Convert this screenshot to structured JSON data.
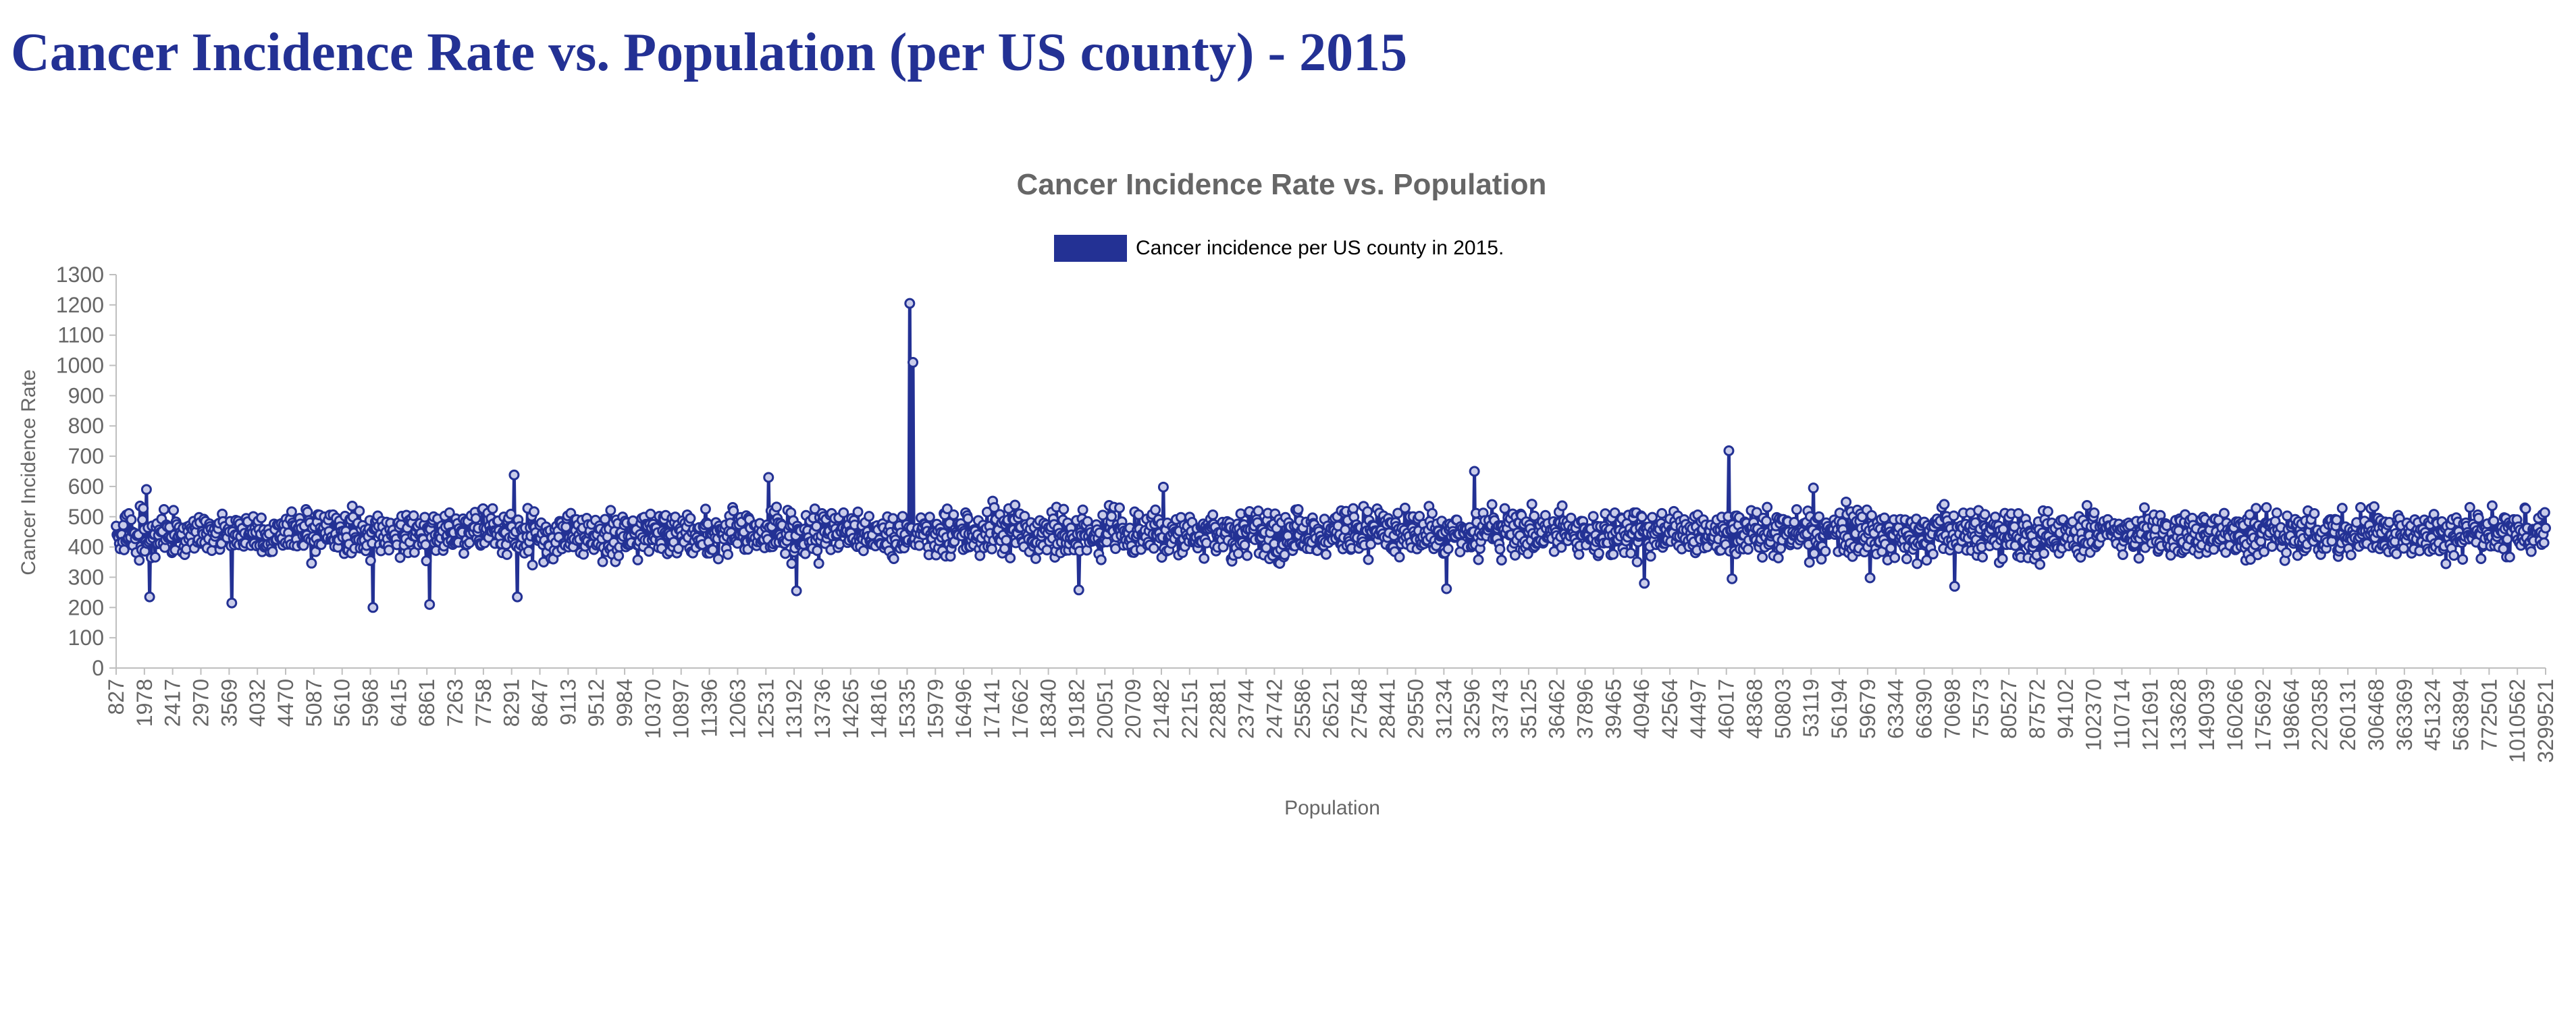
{
  "page": {
    "heading": "Cancer Incidence Rate vs. Population (per US county) - 2015"
  },
  "colors": {
    "heading": "#233194",
    "series": "#233194",
    "marker_fill": "#c9ccea",
    "text": "#666666",
    "legend_text": "#000000",
    "axis": "#bfbfbf"
  },
  "chart_data": {
    "type": "line",
    "title": "Cancer Incidence Rate vs. Population",
    "xlabel": "Population",
    "ylabel": "Cancer Incidence Rate",
    "ylim": [
      0,
      1300
    ],
    "yticks": [
      0,
      100,
      200,
      300,
      400,
      500,
      600,
      700,
      800,
      900,
      1000,
      1100,
      1200,
      1300
    ],
    "grid": false,
    "legend_position": "top",
    "x_axis_type": "category",
    "x_point_count": 3047,
    "x_tick_labels": [
      "827",
      "1978",
      "2417",
      "2970",
      "3569",
      "4032",
      "4470",
      "5087",
      "5610",
      "5968",
      "6415",
      "6861",
      "7263",
      "7758",
      "8291",
      "8647",
      "9113",
      "9512",
      "9984",
      "10370",
      "10897",
      "11396",
      "12063",
      "12531",
      "13192",
      "13736",
      "14265",
      "14816",
      "15335",
      "15979",
      "16496",
      "17141",
      "17662",
      "18340",
      "19182",
      "20051",
      "20709",
      "21482",
      "22151",
      "22881",
      "23744",
      "24742",
      "25586",
      "26521",
      "27548",
      "28441",
      "29550",
      "31234",
      "32596",
      "33743",
      "35125",
      "36462",
      "37896",
      "39465",
      "40946",
      "42564",
      "44497",
      "46017",
      "48368",
      "50803",
      "53119",
      "56194",
      "59679",
      "63344",
      "66390",
      "70698",
      "75573",
      "80527",
      "87572",
      "94102",
      "102370",
      "110714",
      "121691",
      "133628",
      "149039",
      "160266",
      "175692",
      "198664",
      "220358",
      "260131",
      "306468",
      "363369",
      "451324",
      "563894",
      "772501",
      "1010562",
      "3299521"
    ],
    "series": [
      {
        "name": "Cancer incidence per US county in 2015.",
        "baseline_mean": 445,
        "typical_range": [
          340,
          540
        ],
        "notable_points": [
          {
            "x": "15335",
            "y": 1205
          },
          {
            "x": "15335",
            "y": 1010
          },
          {
            "x": "46017",
            "y": 718
          },
          {
            "x": "32596",
            "y": 650
          },
          {
            "x": "8291",
            "y": 638
          },
          {
            "x": "12531",
            "y": 630
          },
          {
            "x": "21482",
            "y": 598
          },
          {
            "x": "53119",
            "y": 595
          },
          {
            "x": "1978",
            "y": 590
          },
          {
            "x": "5968",
            "y": 200
          },
          {
            "x": "6861",
            "y": 210
          },
          {
            "x": "3569",
            "y": 215
          },
          {
            "x": "1978",
            "y": 235
          },
          {
            "x": "8291",
            "y": 235
          },
          {
            "x": "13192",
            "y": 255
          },
          {
            "x": "19182",
            "y": 258
          },
          {
            "x": "31234",
            "y": 262
          },
          {
            "x": "70698",
            "y": 270
          },
          {
            "x": "40946",
            "y": 280
          },
          {
            "x": "46017",
            "y": 295
          },
          {
            "x": "59679",
            "y": 298
          }
        ]
      }
    ]
  }
}
